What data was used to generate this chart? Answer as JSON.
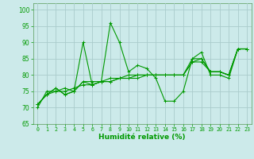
{
  "xlabel": "Humidité relative (%)",
  "bg_color": "#cceaea",
  "grid_color": "#aacccc",
  "line_color": "#009900",
  "xlim": [
    -0.5,
    23.5
  ],
  "ylim": [
    65,
    102
  ],
  "yticks": [
    65,
    70,
    75,
    80,
    85,
    90,
    95,
    100
  ],
  "xticks": [
    0,
    1,
    2,
    3,
    4,
    5,
    6,
    7,
    8,
    9,
    10,
    11,
    12,
    13,
    14,
    15,
    16,
    17,
    18,
    19,
    20,
    21,
    22,
    23
  ],
  "series": [
    [
      70,
      75,
      75,
      76,
      75,
      90,
      77,
      78,
      96,
      90,
      81,
      83,
      82,
      79,
      72,
      72,
      75,
      85,
      87,
      80,
      80,
      79,
      88,
      88
    ],
    [
      71,
      74,
      76,
      74,
      75,
      78,
      77,
      78,
      78,
      79,
      79,
      80,
      80,
      80,
      80,
      80,
      80,
      84,
      84,
      81,
      81,
      80,
      88,
      88
    ],
    [
      71,
      74,
      75,
      75,
      76,
      77,
      77,
      78,
      78,
      79,
      79,
      79,
      80,
      80,
      80,
      80,
      80,
      84,
      85,
      81,
      81,
      80,
      88,
      88
    ],
    [
      71,
      74,
      76,
      74,
      75,
      78,
      78,
      78,
      79,
      79,
      80,
      80,
      80,
      80,
      80,
      80,
      80,
      85,
      85,
      81,
      81,
      80,
      88,
      88
    ]
  ]
}
